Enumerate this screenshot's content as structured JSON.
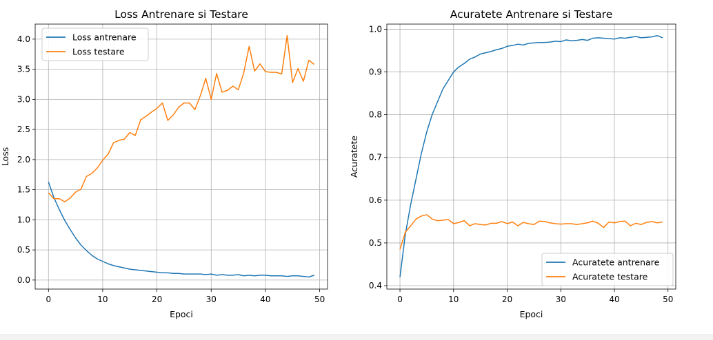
{
  "chart_data": [
    {
      "type": "line",
      "title": "Loss Antrenare si Testare",
      "xlabel": "Epoci",
      "ylabel": "Loss",
      "xlim": [
        -2.45,
        51.45
      ],
      "ylim": [
        -0.15,
        4.25
      ],
      "xticks": [
        "0",
        "10",
        "20",
        "30",
        "40",
        "50"
      ],
      "yticks": [
        "0.0",
        "0.5",
        "1.0",
        "1.5",
        "2.0",
        "2.5",
        "3.0",
        "3.5",
        "4.0"
      ],
      "grid": true,
      "legend": "top-left",
      "x": [
        0,
        1,
        2,
        3,
        4,
        5,
        6,
        7,
        8,
        9,
        10,
        11,
        12,
        13,
        14,
        15,
        16,
        17,
        18,
        19,
        20,
        21,
        22,
        23,
        24,
        25,
        26,
        27,
        28,
        29,
        30,
        31,
        32,
        33,
        34,
        35,
        36,
        37,
        38,
        39,
        40,
        41,
        42,
        43,
        44,
        45,
        46,
        47,
        48,
        49
      ],
      "series": [
        {
          "name": "Loss antrenare",
          "color": "#1f77b4",
          "values": [
            1.63,
            1.37,
            1.17,
            0.99,
            0.84,
            0.7,
            0.58,
            0.49,
            0.41,
            0.35,
            0.31,
            0.27,
            0.24,
            0.22,
            0.2,
            0.18,
            0.17,
            0.16,
            0.15,
            0.14,
            0.13,
            0.12,
            0.12,
            0.11,
            0.11,
            0.1,
            0.1,
            0.1,
            0.1,
            0.09,
            0.1,
            0.08,
            0.09,
            0.08,
            0.08,
            0.09,
            0.07,
            0.08,
            0.07,
            0.08,
            0.08,
            0.07,
            0.07,
            0.07,
            0.06,
            0.07,
            0.07,
            0.06,
            0.05,
            0.08
          ]
        },
        {
          "name": "Loss testare",
          "color": "#ff7f0e",
          "values": [
            1.45,
            1.35,
            1.35,
            1.3,
            1.36,
            1.46,
            1.51,
            1.72,
            1.77,
            1.86,
            1.99,
            2.09,
            2.28,
            2.32,
            2.34,
            2.45,
            2.4,
            2.66,
            2.72,
            2.79,
            2.85,
            2.94,
            2.65,
            2.74,
            2.87,
            2.94,
            2.94,
            2.83,
            3.06,
            3.35,
            3.0,
            3.43,
            3.12,
            3.15,
            3.22,
            3.16,
            3.44,
            3.88,
            3.47,
            3.59,
            3.46,
            3.45,
            3.45,
            3.42,
            4.06,
            3.28,
            3.51,
            3.3,
            3.65,
            3.58
          ]
        }
      ]
    },
    {
      "type": "line",
      "title": "Acuratete Antrenare si Testare",
      "xlabel": "Epoci",
      "ylabel": "Acuratete",
      "xlim": [
        -2.45,
        51.45
      ],
      "ylim": [
        0.392,
        1.012
      ],
      "xticks": [
        "0",
        "10",
        "20",
        "30",
        "40",
        "50"
      ],
      "yticks": [
        "0.4",
        "0.5",
        "0.6",
        "0.7",
        "0.8",
        "0.9",
        "1.0"
      ],
      "grid": true,
      "legend": "bottom-right",
      "x": [
        0,
        1,
        2,
        3,
        4,
        5,
        6,
        7,
        8,
        9,
        10,
        11,
        12,
        13,
        14,
        15,
        16,
        17,
        18,
        19,
        20,
        21,
        22,
        23,
        24,
        25,
        26,
        27,
        28,
        29,
        30,
        31,
        32,
        33,
        34,
        35,
        36,
        37,
        38,
        39,
        40,
        41,
        42,
        43,
        44,
        45,
        46,
        47,
        48,
        49
      ],
      "series": [
        {
          "name": "Acuratete antrenare",
          "color": "#1f77b4",
          "values": [
            0.42,
            0.52,
            0.59,
            0.65,
            0.71,
            0.76,
            0.8,
            0.83,
            0.86,
            0.88,
            0.9,
            0.912,
            0.92,
            0.93,
            0.935,
            0.942,
            0.945,
            0.948,
            0.952,
            0.955,
            0.96,
            0.962,
            0.965,
            0.963,
            0.967,
            0.968,
            0.969,
            0.969,
            0.97,
            0.972,
            0.971,
            0.975,
            0.973,
            0.974,
            0.976,
            0.974,
            0.979,
            0.98,
            0.979,
            0.978,
            0.977,
            0.98,
            0.979,
            0.981,
            0.983,
            0.98,
            0.981,
            0.982,
            0.985,
            0.98
          ]
        },
        {
          "name": "Acuratete testare",
          "color": "#ff7f0e",
          "values": [
            0.485,
            0.525,
            0.54,
            0.556,
            0.563,
            0.566,
            0.556,
            0.552,
            0.553,
            0.555,
            0.545,
            0.548,
            0.552,
            0.54,
            0.545,
            0.543,
            0.542,
            0.546,
            0.546,
            0.55,
            0.545,
            0.549,
            0.54,
            0.548,
            0.545,
            0.543,
            0.551,
            0.55,
            0.547,
            0.545,
            0.544,
            0.545,
            0.545,
            0.543,
            0.545,
            0.547,
            0.551,
            0.546,
            0.536,
            0.549,
            0.547,
            0.55,
            0.551,
            0.54,
            0.546,
            0.543,
            0.548,
            0.55,
            0.547,
            0.549
          ]
        }
      ]
    }
  ]
}
